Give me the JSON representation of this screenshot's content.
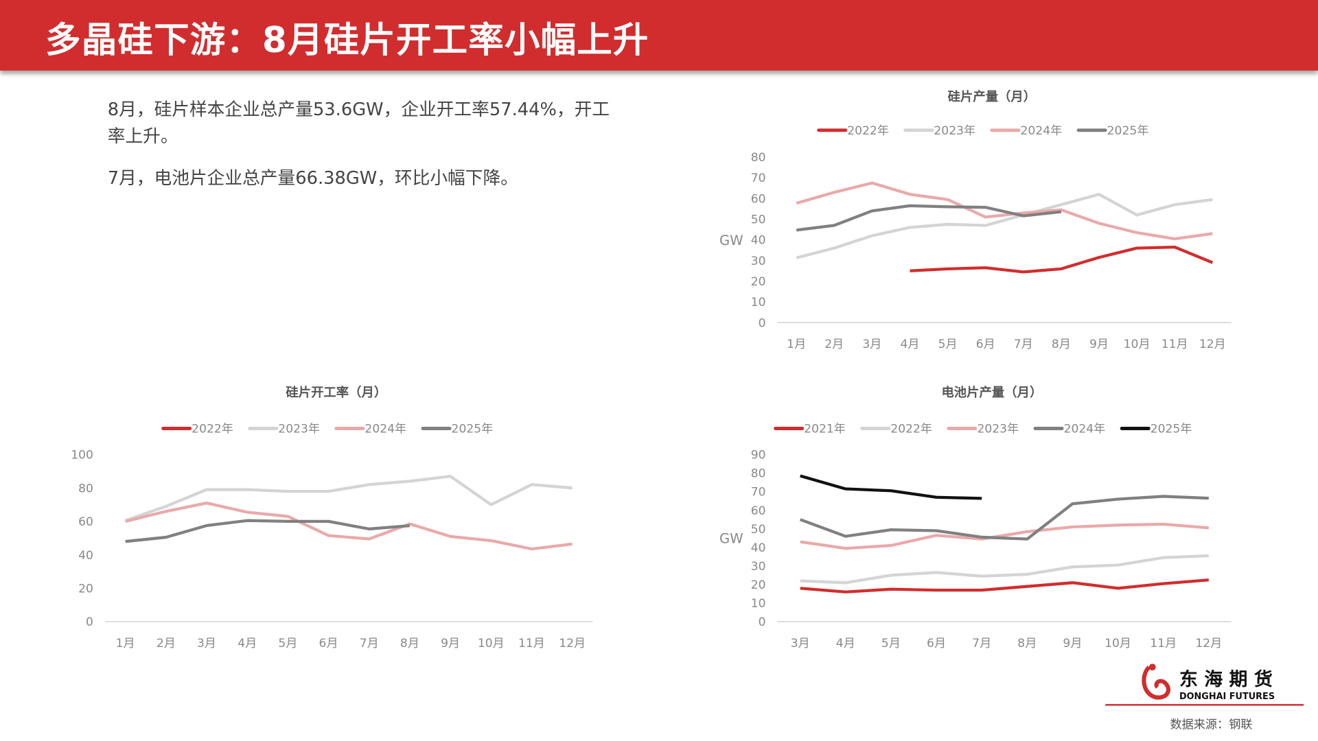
{
  "header": {
    "title": "多晶硅下游：8月硅片开工率小幅上升"
  },
  "summary": {
    "p1": "8月，硅片样本企业总产量53.6GW，企业开工率57.44%，开工率上升。",
    "p2": "7月，电池片企业总产量66.38GW，环比小幅下降。"
  },
  "logo": {
    "cn": "东海期货",
    "en": "DONGHAI FUTURES",
    "color": "#d12d2e"
  },
  "footer": {
    "source": "数据来源：钢联"
  },
  "chart_data": [
    {
      "id": "wafer-output",
      "type": "line",
      "title": "硅片产量（月）",
      "ylabel": "GW",
      "ylim": [
        0,
        80
      ],
      "yticks": [
        0,
        10,
        20,
        30,
        40,
        50,
        60,
        70,
        80
      ],
      "grid": false,
      "legend": "top",
      "categories": [
        "1月",
        "2月",
        "3月",
        "4月",
        "5月",
        "6月",
        "7月",
        "8月",
        "9月",
        "10月",
        "11月",
        "12月"
      ],
      "series": [
        {
          "name": "2022年",
          "color": "#d12d2e",
          "values": [
            null,
            null,
            null,
            25,
            26,
            26.5,
            24.5,
            26,
            31.5,
            36,
            36.5,
            29
          ]
        },
        {
          "name": "2023年",
          "color": "#d4d4d4",
          "values": [
            31.3,
            36,
            42,
            46,
            47.5,
            47,
            52,
            57,
            62,
            52,
            57,
            59.5
          ]
        },
        {
          "name": "2024年",
          "color": "#eaa9aa",
          "values": [
            57.7,
            63,
            67.5,
            62,
            59.5,
            51,
            53,
            54.5,
            48,
            43.5,
            40.5,
            43
          ]
        },
        {
          "name": "2025年",
          "color": "#808080",
          "values": [
            44.7,
            47,
            54,
            56.5,
            56,
            55.7,
            51.6,
            53.6,
            null,
            null,
            null,
            null
          ]
        }
      ]
    },
    {
      "id": "wafer-utilization",
      "type": "line",
      "title": "硅片开工率（月）",
      "ylabel": "",
      "ylim": [
        0,
        100
      ],
      "yticks": [
        0,
        20,
        40,
        60,
        80,
        100
      ],
      "grid": false,
      "legend": "top",
      "categories": [
        "1月",
        "2月",
        "3月",
        "4月",
        "5月",
        "6月",
        "7月",
        "8月",
        "9月",
        "10月",
        "11月",
        "12月"
      ],
      "series": [
        {
          "name": "2022年",
          "color": "#d12d2e",
          "values": [
            null,
            null,
            null,
            null,
            null,
            null,
            null,
            null,
            null,
            null,
            null,
            null
          ]
        },
        {
          "name": "2023年",
          "color": "#d4d4d4",
          "values": [
            60.5,
            69,
            79,
            79,
            78,
            78,
            82,
            84,
            87,
            70,
            82,
            80
          ]
        },
        {
          "name": "2024年",
          "color": "#eaa9aa",
          "values": [
            60,
            66,
            71,
            65.5,
            63,
            51.5,
            49.5,
            58.5,
            51,
            48.5,
            43.5,
            46.5
          ]
        },
        {
          "name": "2025年",
          "color": "#808080",
          "values": [
            48,
            50.5,
            57.5,
            60.5,
            60,
            60,
            55.5,
            57.44,
            null,
            null,
            null,
            null
          ]
        }
      ]
    },
    {
      "id": "cell-output",
      "type": "line",
      "title": "电池片产量（月）",
      "ylabel": "GW",
      "ylim": [
        0,
        90
      ],
      "yticks": [
        0,
        10,
        20,
        30,
        40,
        50,
        60,
        70,
        80,
        90
      ],
      "grid": false,
      "legend": "top",
      "categories": [
        "3月",
        "4月",
        "5月",
        "6月",
        "7月",
        "8月",
        "9月",
        "10月",
        "11月",
        "12月"
      ],
      "series": [
        {
          "name": "2021年",
          "color": "#d12d2e",
          "values": [
            18,
            16,
            17.5,
            17,
            17,
            19,
            21,
            18,
            20.5,
            22.5
          ]
        },
        {
          "name": "2022年",
          "color": "#d4d4d4",
          "values": [
            22,
            21,
            25,
            26.5,
            24.5,
            25.5,
            29.5,
            30.5,
            34.5,
            35.5
          ]
        },
        {
          "name": "2023年",
          "color": "#eaa9aa",
          "values": [
            43,
            39.5,
            41,
            46.5,
            44.5,
            48.5,
            51,
            52,
            52.5,
            50.5
          ]
        },
        {
          "name": "2024年",
          "color": "#808080",
          "values": [
            55,
            46,
            49.5,
            49,
            45.5,
            44.5,
            63.5,
            66,
            67.5,
            66.5
          ]
        },
        {
          "name": "2025年",
          "color": "#111111",
          "values": [
            78.5,
            71.5,
            70.5,
            67,
            66.38,
            null,
            null,
            null,
            null,
            null
          ]
        }
      ]
    }
  ]
}
